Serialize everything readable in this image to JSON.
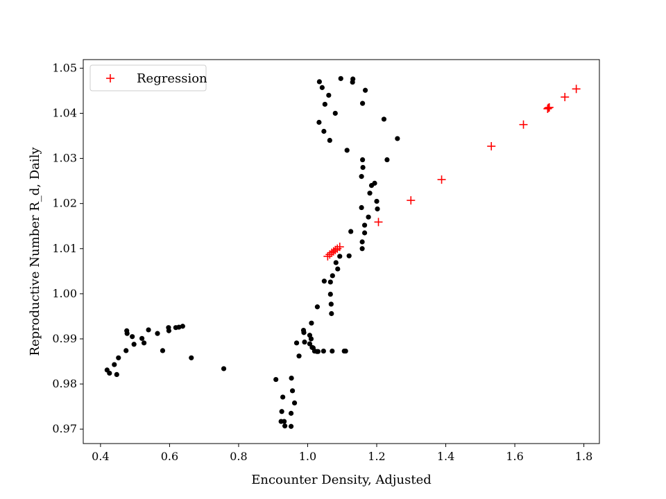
{
  "chart_data": {
    "type": "scatter",
    "xlabel": "Encounter Density, Adjusted",
    "ylabel": "Reproductive Number R_d, Daily",
    "xlim": [
      0.35,
      1.845
    ],
    "ylim": [
      0.9668,
      1.0519
    ],
    "xticks": [
      0.4,
      0.6,
      0.8,
      1.0,
      1.2,
      1.4,
      1.6,
      1.8
    ],
    "xtick_labels": [
      "0.4",
      "0.6",
      "0.8",
      "1.0",
      "1.2",
      "1.4",
      "1.6",
      "1.8"
    ],
    "yticks": [
      0.97,
      0.98,
      0.99,
      1.0,
      1.01,
      1.02,
      1.03,
      1.04,
      1.05
    ],
    "ytick_labels": [
      "0.97",
      "0.98",
      "0.99",
      "1.00",
      "1.01",
      "1.02",
      "1.03",
      "1.04",
      "1.05"
    ],
    "grid": false,
    "legend_position": "top-left",
    "series": [
      {
        "color": "#000000",
        "marker": "circle",
        "points": [
          [
            0.419,
            0.9831
          ],
          [
            0.426,
            0.9824
          ],
          [
            0.44,
            0.9843
          ],
          [
            0.447,
            0.9821
          ],
          [
            0.452,
            0.9858
          ],
          [
            0.474,
            0.9874
          ],
          [
            0.476,
            0.9918
          ],
          [
            0.477,
            0.9912
          ],
          [
            0.492,
            0.9905
          ],
          [
            0.497,
            0.9888
          ],
          [
            0.52,
            0.9901
          ],
          [
            0.526,
            0.9891
          ],
          [
            0.539,
            0.992
          ],
          [
            0.565,
            0.9912
          ],
          [
            0.58,
            0.9874
          ],
          [
            0.597,
            0.9925
          ],
          [
            0.598,
            0.9918
          ],
          [
            0.618,
            0.9925
          ],
          [
            0.627,
            0.9926
          ],
          [
            0.638,
            0.9928
          ],
          [
            0.663,
            0.9858
          ],
          [
            0.757,
            0.9834
          ],
          [
            0.908,
            0.981
          ],
          [
            0.923,
            0.9717
          ],
          [
            0.925,
            0.9739
          ],
          [
            0.928,
            0.9771
          ],
          [
            0.932,
            0.9717
          ],
          [
            0.934,
            0.9707
          ],
          [
            0.952,
            0.9706
          ],
          [
            0.952,
            0.9735
          ],
          [
            0.953,
            0.9813
          ],
          [
            0.956,
            0.9785
          ],
          [
            0.962,
            0.9758
          ],
          [
            0.968,
            0.9891
          ],
          [
            0.975,
            0.9862
          ],
          [
            0.988,
            0.9919
          ],
          [
            0.989,
            0.9914
          ],
          [
            0.991,
            0.9893
          ],
          [
            1.006,
            0.9889
          ],
          [
            1.006,
            0.9908
          ],
          [
            1.01,
            0.99
          ],
          [
            1.011,
            0.9935
          ],
          [
            1.013,
            0.9881
          ],
          [
            1.016,
            0.988
          ],
          [
            1.02,
            0.9873
          ],
          [
            1.027,
            0.9872
          ],
          [
            1.028,
            0.9971
          ],
          [
            1.03,
            0.9872
          ],
          [
            1.033,
            1.038
          ],
          [
            1.034,
            1.047
          ],
          [
            1.042,
            1.0457
          ],
          [
            1.046,
            0.9873
          ],
          [
            1.047,
            1.036
          ],
          [
            1.048,
            1.0028
          ],
          [
            1.05,
            1.042
          ],
          [
            1.061,
            1.044
          ],
          [
            1.064,
            1.034
          ],
          [
            1.066,
            0.9999
          ],
          [
            1.066,
            1.0026
          ],
          [
            1.068,
            0.9977
          ],
          [
            1.069,
            0.9956
          ],
          [
            1.071,
            0.9873
          ],
          [
            1.072,
            1.004
          ],
          [
            1.08,
            1.04
          ],
          [
            1.082,
            1.0069
          ],
          [
            1.087,
            1.0055
          ],
          [
            1.093,
            1.0083
          ],
          [
            1.096,
            1.0477
          ],
          [
            1.106,
            0.9873
          ],
          [
            1.11,
            0.9873
          ],
          [
            1.114,
            1.0318
          ],
          [
            1.12,
            1.0084
          ],
          [
            1.125,
            1.0138
          ],
          [
            1.13,
            1.0469
          ],
          [
            1.131,
            1.0476
          ],
          [
            1.156,
            1.0191
          ],
          [
            1.156,
            1.026
          ],
          [
            1.158,
            1.01
          ],
          [
            1.158,
            1.0115
          ],
          [
            1.159,
            1.0297
          ],
          [
            1.159,
            1.0422
          ],
          [
            1.16,
            1.028
          ],
          [
            1.165,
            1.0152
          ],
          [
            1.165,
            1.0135
          ],
          [
            1.167,
            1.0451
          ],
          [
            1.176,
            1.017
          ],
          [
            1.18,
            1.0223
          ],
          [
            1.185,
            1.024
          ],
          [
            1.194,
            1.0245
          ],
          [
            1.2,
            1.0205
          ],
          [
            1.202,
            1.0188
          ],
          [
            1.221,
            1.0387
          ],
          [
            1.23,
            1.0297
          ],
          [
            1.26,
            1.0344
          ]
        ]
      },
      {
        "name": "Regression",
        "color": "#ff0000",
        "marker": "plus",
        "points": [
          [
            1.058,
            1.0083
          ],
          [
            1.064,
            1.0087
          ],
          [
            1.07,
            1.0091
          ],
          [
            1.075,
            1.0094
          ],
          [
            1.08,
            1.0097
          ],
          [
            1.086,
            1.01
          ],
          [
            1.093,
            1.0104
          ],
          [
            1.205,
            1.0159
          ],
          [
            1.299,
            1.0207
          ],
          [
            1.388,
            1.0253
          ],
          [
            1.532,
            1.0327
          ],
          [
            1.625,
            1.0375
          ],
          [
            1.695,
            1.041
          ],
          [
            1.697,
            1.0412
          ],
          [
            1.7,
            1.0413
          ],
          [
            1.745,
            1.0436
          ],
          [
            1.778,
            1.0454
          ]
        ]
      }
    ]
  }
}
